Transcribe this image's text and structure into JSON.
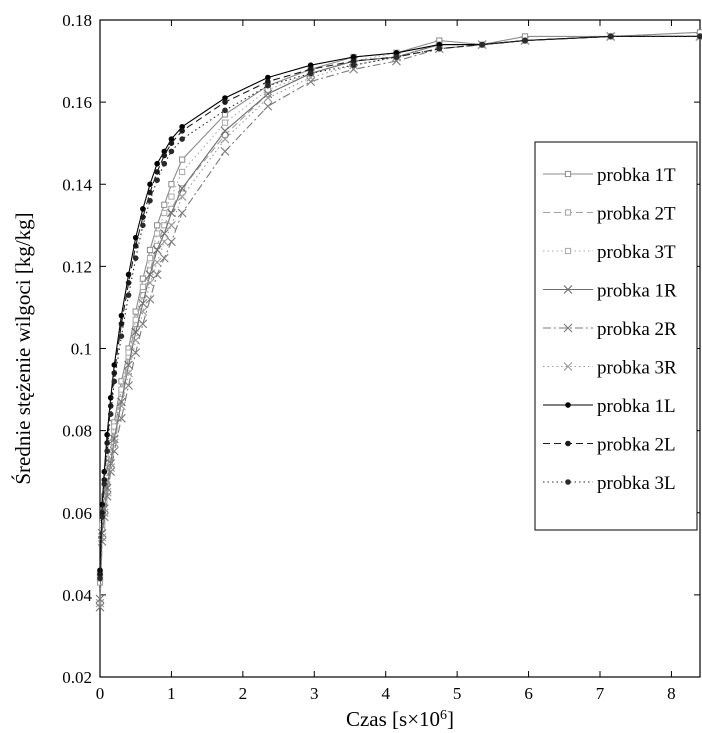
{
  "chart_data": {
    "type": "line",
    "title": "",
    "xlabel": "Czas [s×10",
    "xlabel_sup": "6",
    "xlabel_end": "]",
    "ylabel": "Średnie stężenie wilgoci [kg/kg]",
    "xlim": [
      0,
      8.4
    ],
    "ylim": [
      0.02,
      0.18
    ],
    "xticks": [
      "0",
      "1",
      "2",
      "3",
      "4",
      "5",
      "6",
      "7",
      "8"
    ],
    "yticks": [
      "0.02",
      "0.04",
      "0.06",
      "0.08",
      "0.1",
      "0.12",
      "0.14",
      "0.16",
      "0.18"
    ],
    "grid": false,
    "legend_position": "right",
    "series": [
      {
        "name": "probka 1T",
        "color": "#8c8c8c",
        "dash": "solid",
        "marker": "square",
        "x": [
          0,
          0.03,
          0.06,
          0.1,
          0.15,
          0.2,
          0.3,
          0.4,
          0.5,
          0.6,
          0.7,
          0.8,
          0.9,
          1.0,
          1.15,
          1.75,
          2.35,
          2.95,
          3.55,
          4.15,
          4.75,
          5.35,
          5.95,
          7.15,
          8.4
        ],
        "y": [
          0.045,
          0.058,
          0.064,
          0.07,
          0.077,
          0.082,
          0.092,
          0.1,
          0.109,
          0.117,
          0.124,
          0.13,
          0.135,
          0.14,
          0.146,
          0.157,
          0.164,
          0.168,
          0.171,
          0.172,
          0.175,
          0.174,
          0.176,
          0.176,
          0.177
        ]
      },
      {
        "name": "probka 2T",
        "color": "#a0a0a0",
        "dash": "dashed",
        "marker": "square",
        "x": [
          0,
          0.03,
          0.06,
          0.1,
          0.15,
          0.2,
          0.3,
          0.4,
          0.5,
          0.6,
          0.7,
          0.8,
          0.9,
          1.0,
          1.15,
          1.75,
          2.35,
          2.95,
          3.55,
          4.15,
          4.75,
          5.35,
          5.95,
          7.15,
          8.4
        ],
        "y": [
          0.043,
          0.056,
          0.062,
          0.067,
          0.074,
          0.08,
          0.089,
          0.098,
          0.106,
          0.113,
          0.119,
          0.125,
          0.13,
          0.134,
          0.139,
          0.152,
          0.162,
          0.167,
          0.17,
          0.171,
          0.174,
          0.174,
          0.175,
          0.176,
          0.176
        ]
      },
      {
        "name": "probka 3T",
        "color": "#a8a8a8",
        "dash": "dotted",
        "marker": "square",
        "x": [
          0,
          0.03,
          0.06,
          0.1,
          0.15,
          0.2,
          0.3,
          0.4,
          0.5,
          0.6,
          0.7,
          0.8,
          0.9,
          1.0,
          1.15,
          1.75,
          2.35,
          2.95,
          3.55,
          4.15,
          4.75,
          5.35,
          5.95,
          7.15,
          8.4
        ],
        "y": [
          0.044,
          0.057,
          0.063,
          0.069,
          0.076,
          0.081,
          0.09,
          0.099,
          0.107,
          0.115,
          0.122,
          0.128,
          0.133,
          0.137,
          0.143,
          0.155,
          0.163,
          0.167,
          0.17,
          0.172,
          0.174,
          0.174,
          0.175,
          0.176,
          0.176
        ]
      },
      {
        "name": "probka 1R",
        "color": "#6e6e6e",
        "dash": "solid",
        "marker": "x",
        "x": [
          0,
          0.03,
          0.06,
          0.1,
          0.15,
          0.2,
          0.3,
          0.4,
          0.5,
          0.6,
          0.7,
          0.8,
          0.9,
          1.0,
          1.15,
          1.75,
          2.35,
          2.95,
          3.55,
          4.15,
          4.75,
          5.35,
          5.95,
          7.15,
          8.4
        ],
        "y": [
          0.039,
          0.055,
          0.061,
          0.066,
          0.072,
          0.078,
          0.087,
          0.096,
          0.104,
          0.111,
          0.118,
          0.124,
          0.128,
          0.133,
          0.139,
          0.153,
          0.162,
          0.167,
          0.17,
          0.171,
          0.174,
          0.174,
          0.175,
          0.176,
          0.176
        ]
      },
      {
        "name": "probka 2R",
        "color": "#7a7a7a",
        "dash": "dashdot",
        "marker": "x",
        "x": [
          0,
          0.03,
          0.06,
          0.1,
          0.15,
          0.2,
          0.3,
          0.4,
          0.5,
          0.6,
          0.7,
          0.8,
          0.9,
          1.0,
          1.15,
          1.75,
          2.35,
          2.95,
          3.55,
          4.15,
          4.75,
          5.35,
          5.95,
          7.15,
          8.4
        ],
        "y": [
          0.037,
          0.053,
          0.059,
          0.064,
          0.07,
          0.075,
          0.083,
          0.091,
          0.099,
          0.106,
          0.112,
          0.118,
          0.122,
          0.126,
          0.133,
          0.148,
          0.159,
          0.165,
          0.168,
          0.17,
          0.173,
          0.174,
          0.175,
          0.176,
          0.176
        ]
      },
      {
        "name": "probka 3R",
        "color": "#999999",
        "dash": "dotted",
        "marker": "x",
        "x": [
          0,
          0.03,
          0.06,
          0.1,
          0.15,
          0.2,
          0.3,
          0.4,
          0.5,
          0.6,
          0.7,
          0.8,
          0.9,
          1.0,
          1.15,
          1.75,
          2.35,
          2.95,
          3.55,
          4.15,
          4.75,
          5.35,
          5.95,
          7.15,
          8.4
        ],
        "y": [
          0.038,
          0.054,
          0.06,
          0.065,
          0.071,
          0.077,
          0.086,
          0.094,
          0.102,
          0.109,
          0.116,
          0.121,
          0.126,
          0.13,
          0.137,
          0.151,
          0.161,
          0.166,
          0.169,
          0.171,
          0.174,
          0.174,
          0.175,
          0.176,
          0.176
        ]
      },
      {
        "name": "probka 1L",
        "color": "#000000",
        "dash": "solid",
        "marker": "dot",
        "x": [
          0,
          0.03,
          0.06,
          0.1,
          0.15,
          0.2,
          0.3,
          0.4,
          0.5,
          0.6,
          0.7,
          0.8,
          0.9,
          1.0,
          1.15,
          1.75,
          2.35,
          2.95,
          3.55,
          4.15,
          4.75,
          5.35,
          5.95,
          7.15,
          8.4
        ],
        "y": [
          0.046,
          0.062,
          0.07,
          0.079,
          0.088,
          0.096,
          0.108,
          0.118,
          0.127,
          0.134,
          0.14,
          0.145,
          0.148,
          0.151,
          0.154,
          0.161,
          0.166,
          0.169,
          0.171,
          0.172,
          0.174,
          0.174,
          0.175,
          0.176,
          0.176
        ]
      },
      {
        "name": "probka 2L",
        "color": "#1a1a1a",
        "dash": "dashed",
        "marker": "dot",
        "x": [
          0,
          0.03,
          0.06,
          0.1,
          0.15,
          0.2,
          0.3,
          0.4,
          0.5,
          0.6,
          0.7,
          0.8,
          0.9,
          1.0,
          1.15,
          1.75,
          2.35,
          2.95,
          3.55,
          4.15,
          4.75,
          5.35,
          5.95,
          7.15,
          8.4
        ],
        "y": [
          0.045,
          0.06,
          0.068,
          0.077,
          0.086,
          0.094,
          0.106,
          0.116,
          0.125,
          0.132,
          0.138,
          0.143,
          0.147,
          0.15,
          0.153,
          0.16,
          0.165,
          0.168,
          0.17,
          0.171,
          0.173,
          0.174,
          0.175,
          0.176,
          0.176
        ]
      },
      {
        "name": "probka 3L",
        "color": "#2a2a2a",
        "dash": "dotted",
        "marker": "dot",
        "x": [
          0,
          0.03,
          0.06,
          0.1,
          0.15,
          0.2,
          0.3,
          0.4,
          0.5,
          0.6,
          0.7,
          0.8,
          0.9,
          1.0,
          1.15,
          1.75,
          2.35,
          2.95,
          3.55,
          4.15,
          4.75,
          5.35,
          5.95,
          7.15,
          8.4
        ],
        "y": [
          0.044,
          0.059,
          0.067,
          0.075,
          0.084,
          0.092,
          0.103,
          0.113,
          0.122,
          0.13,
          0.136,
          0.141,
          0.145,
          0.148,
          0.151,
          0.158,
          0.164,
          0.167,
          0.169,
          0.171,
          0.173,
          0.174,
          0.175,
          0.176,
          0.176
        ]
      }
    ]
  }
}
